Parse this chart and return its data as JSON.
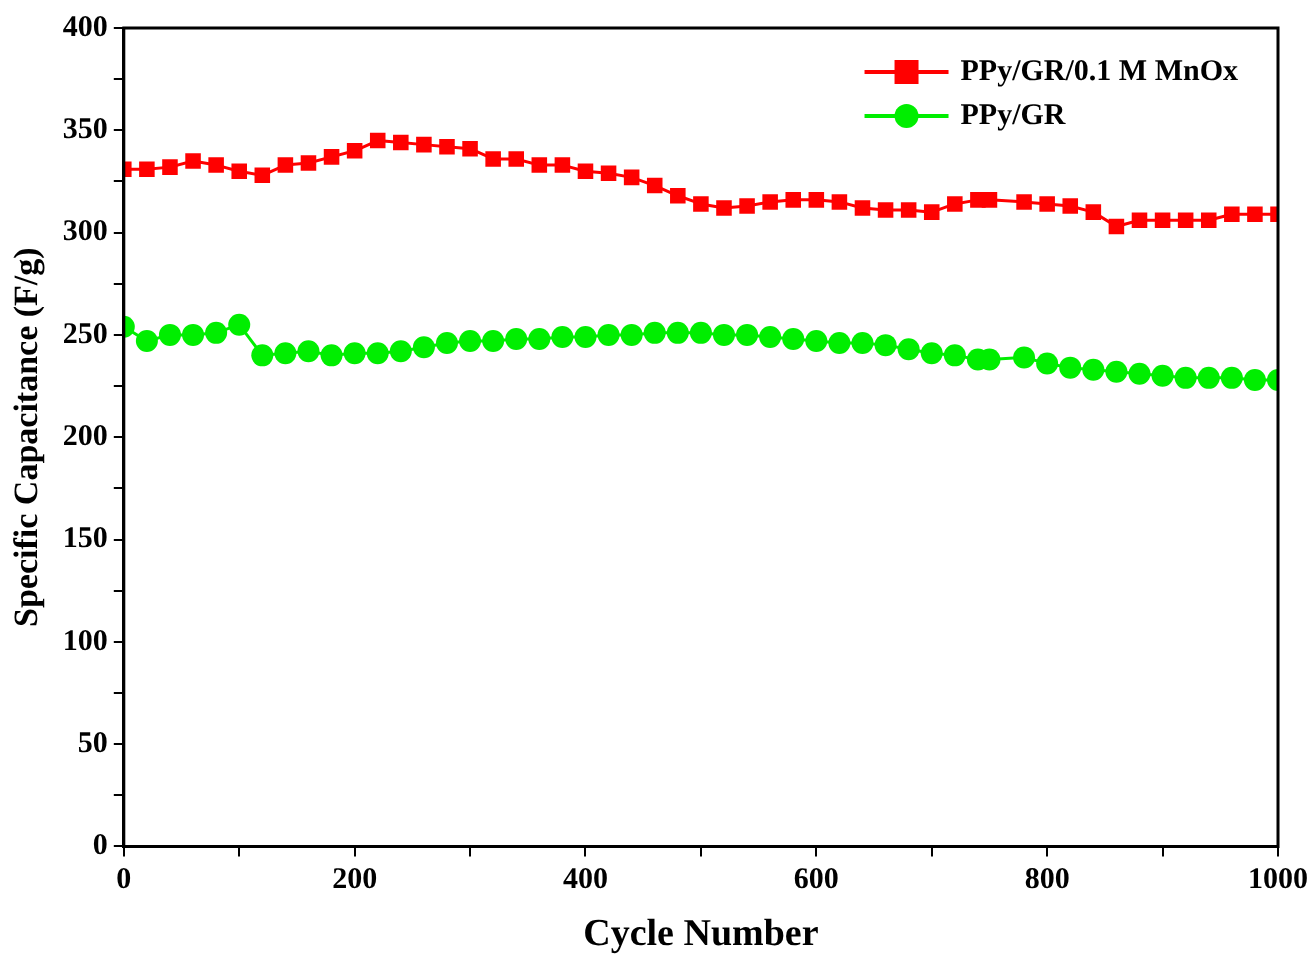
{
  "chart_data": {
    "type": "line",
    "xlabel": "Cycle Number",
    "ylabel": "Specific Capacitance (F/g)",
    "xlim": [
      0,
      1000
    ],
    "xticks": [
      0,
      {
        "value": 100,
        "label": null
      },
      200,
      {
        "value": 300,
        "label": null
      },
      400,
      {
        "value": 500,
        "label": null
      },
      600,
      {
        "value": 700,
        "label": null
      },
      800,
      {
        "value": 900,
        "label": null
      },
      1000
    ],
    "ylim": [
      0,
      400
    ],
    "yticks": [
      0,
      {
        "value": 25,
        "label": null
      },
      50,
      {
        "value": 75,
        "label": null
      },
      100,
      {
        "value": 125,
        "label": null
      },
      150,
      {
        "value": 175,
        "label": null
      },
      200,
      {
        "value": 225,
        "label": null
      },
      250,
      {
        "value": 275,
        "label": null
      },
      300,
      {
        "value": 325,
        "label": null
      },
      350,
      {
        "value": 375,
        "label": null
      },
      400
    ],
    "grid": false,
    "legend": "top right",
    "series": [
      {
        "name": "PPy/GR/0.1 M MnOx",
        "color": "#ff0000",
        "marker": "square",
        "x": [
          0,
          20,
          40,
          60,
          80,
          100,
          120,
          140,
          160,
          180,
          200,
          220,
          240,
          260,
          280,
          300,
          320,
          340,
          360,
          380,
          400,
          420,
          440,
          460,
          480,
          500,
          520,
          540,
          560,
          580,
          600,
          620,
          640,
          660,
          680,
          700,
          720,
          740,
          750,
          780,
          800,
          820,
          840,
          860,
          880,
          900,
          920,
          940,
          960,
          980,
          1000
        ],
        "values": [
          331,
          331,
          332,
          335,
          333,
          330,
          328,
          333,
          334,
          337,
          340,
          345,
          344,
          343,
          342,
          341,
          336,
          336,
          333,
          333,
          330,
          329,
          327,
          323,
          318,
          314,
          312,
          313,
          315,
          316,
          316,
          315,
          312,
          311,
          311,
          310,
          314,
          316,
          316,
          315,
          314,
          313,
          310,
          303,
          306,
          306,
          306,
          306,
          309,
          309,
          309
        ]
      },
      {
        "name": "PPy/GR",
        "color": "#00ee00",
        "marker": "circle",
        "x": [
          0,
          20,
          40,
          60,
          80,
          100,
          120,
          140,
          160,
          180,
          200,
          220,
          240,
          260,
          280,
          300,
          320,
          340,
          360,
          380,
          400,
          420,
          440,
          460,
          480,
          500,
          520,
          540,
          560,
          580,
          600,
          620,
          640,
          660,
          680,
          700,
          720,
          740,
          750,
          780,
          800,
          820,
          840,
          860,
          880,
          900,
          920,
          940,
          960,
          980,
          1000
        ],
        "values": [
          254,
          247,
          250,
          250,
          251,
          255,
          240,
          241,
          242,
          240,
          241,
          241,
          242,
          244,
          246,
          247,
          247,
          248,
          248,
          249,
          249,
          250,
          250,
          251,
          251,
          251,
          250,
          250,
          249,
          248,
          247,
          246,
          246,
          245,
          243,
          241,
          240,
          238,
          238,
          239,
          236,
          234,
          233,
          232,
          231,
          230,
          229,
          229,
          229,
          228,
          228
        ]
      }
    ]
  }
}
